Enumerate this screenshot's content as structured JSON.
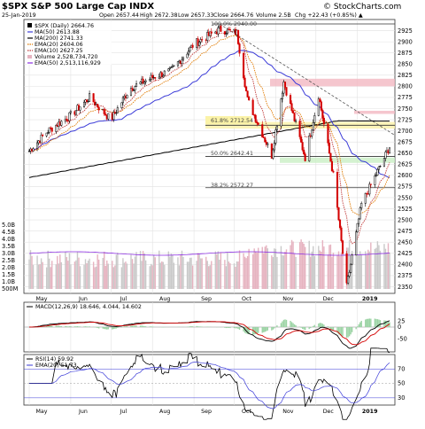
{
  "header": {
    "symbol": "$SPX S&P 500 Large Cap INDX",
    "site": "© StockCharts.com",
    "date": "25-Jan-2019",
    "open": "Open 2657.44",
    "high": "High 2672.38",
    "low": "Low 2657.33",
    "close": "Close 2664.76",
    "volume": "Volume 2.5B",
    "chg": "Chg +22.43 (+0.85%) ▲"
  },
  "legend": {
    "price": "$SPX (Daily) 2664.76",
    "ma50": "MA(50) 2613.88",
    "ma200": "MA(200) 2741.33",
    "ema20": "EMA(20) 2604.06",
    "ema10": "EMA(10) 2627.25",
    "volume": "Volume 2,528,734,720",
    "vema": "EMA(50) 2,513,116,929",
    "macd": "MACD(12,26,9) 18.646, 4.044, 14.602",
    "rsi": "RSI(14) 59.92",
    "rsi_ema": "EMA(20) 51.73"
  },
  "fib_labels": {
    "f618": "61.8% 2712.54",
    "f50": "50.0% 2642.41",
    "f382": "38.2% 2572.27",
    "f100": "100.0% 2940.00"
  },
  "months": [
    "May",
    "Jun",
    "Jul",
    "Aug",
    "Sep",
    "Oct",
    "Nov",
    "Dec",
    "2019"
  ],
  "chart_data": {
    "type": "line",
    "title": "$SPX S&P 500 Large Cap INDX",
    "x_range": [
      "2018-05-01",
      "2019-01-25"
    ],
    "price_axis": {
      "range": [
        2335,
        2950
      ],
      "ticks": [
        2350,
        2375,
        2400,
        2425,
        2450,
        2475,
        2500,
        2525,
        2550,
        2575,
        2600,
        2625,
        2650,
        2675,
        2700,
        2725,
        2750,
        2775,
        2800,
        2825,
        2850,
        2875,
        2900,
        2925
      ]
    },
    "volume_axis": {
      "labels": [
        "500M",
        "1.0B",
        "1.5B",
        "2.0B",
        "2.5B",
        "3.0B",
        "3.5B",
        "4.0B",
        "4.5B",
        "5.0B"
      ]
    },
    "price_series": {
      "name": "$SPX (Daily)",
      "x": [
        "2018-05-01",
        "2018-05-15",
        "2018-06-01",
        "2018-06-15",
        "2018-07-01",
        "2018-07-15",
        "2018-08-01",
        "2018-08-15",
        "2018-09-01",
        "2018-09-20",
        "2018-10-03",
        "2018-10-11",
        "2018-10-29",
        "2018-11-07",
        "2018-11-23",
        "2018-12-03",
        "2018-12-14",
        "2018-12-24",
        "2019-01-04",
        "2019-01-25"
      ],
      "close": [
        2655,
        2700,
        2735,
        2775,
        2725,
        2795,
        2820,
        2835,
        2895,
        2928,
        2920,
        2770,
        2645,
        2810,
        2640,
        2780,
        2600,
        2350,
        2535,
        2664
      ]
    },
    "indicators": {
      "ma50": 2613.88,
      "ma200": 2741.33,
      "ema20": 2604.06,
      "ema10": 2627.25
    },
    "support_zones": [
      {
        "from": 2800,
        "to": 2817,
        "color": "#f2b8c2"
      },
      {
        "from": 2738,
        "to": 2745,
        "color": "#f2b8c2"
      },
      {
        "from": 2628,
        "to": 2640,
        "color": "#c9efc4"
      },
      {
        "from": 2705,
        "to": 2720,
        "color": "#fbf3a8"
      }
    ],
    "fib_levels": [
      {
        "label": "100.0%",
        "value": 2940.0
      },
      {
        "label": "61.8%",
        "value": 2712.54
      },
      {
        "label": "50.0%",
        "value": 2642.41
      },
      {
        "label": "38.2%",
        "value": 2572.27
      }
    ],
    "macd": {
      "macd": 18.646,
      "signal": 4.044,
      "histogram": 14.602
    },
    "rsi": {
      "value": 59.92,
      "ema20": 51.73,
      "levels": [
        70,
        30
      ]
    },
    "colors": {
      "price_up": "#000000",
      "price_down": "#d40000",
      "ma50": "#3b3bd8",
      "ma200": "#000000",
      "ema20": "#e07a00",
      "ema10": "#c03a3a",
      "volume": "#e6b3c0"
    }
  }
}
